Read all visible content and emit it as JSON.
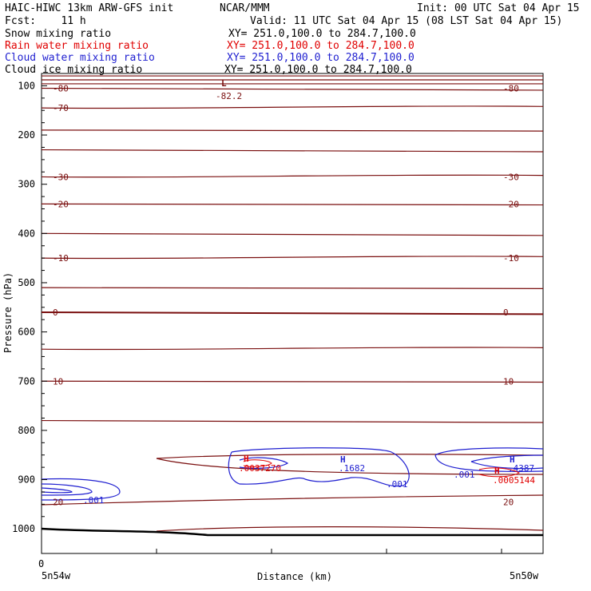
{
  "header": {
    "model": "HAIC-HIWC 13km ARW-GFS init",
    "org": "NCAR/MMM",
    "init": "Init: 00 UTC Sat 04 Apr 15",
    "fcst": "Fcst:    11 h",
    "valid": "Valid: 11 UTC Sat 04 Apr 15 (08 LST Sat 04 Apr 15)"
  },
  "legend": [
    {
      "label": "Snow mixing ratio",
      "xy": "XY= 251.0,100.0 to 284.7,100.0",
      "color": "#000000"
    },
    {
      "label": "Rain water mixing ratio",
      "xy": "XY= 251.0,100.0 to 284.7,100.0",
      "color": "#e00000"
    },
    {
      "label": "Cloud water mixing ratio",
      "xy": "XY= 251.0,100.0 to 284.7,100.0",
      "color": "#1f1fd0"
    },
    {
      "label": "Cloud ice mixing ratio",
      "xy": "XY= 251.0,100.0 to 284.7,100.0",
      "color": "#000000"
    }
  ],
  "colors": {
    "temperature": "#7a0f0f",
    "cloud_water": "#1f1fd0",
    "rain": "#e00000",
    "surface": "#000000"
  },
  "chart_data": {
    "type": "contour",
    "xlabel": "Distance (km)",
    "ylabel": "Pressure (hPa)",
    "x_ticks": [
      "0"
    ],
    "x_endpoints": [
      "5n54w",
      "5n50w"
    ],
    "y_ticks": [
      100,
      200,
      300,
      400,
      500,
      600,
      700,
      800,
      900,
      1000
    ],
    "ylim": [
      1050,
      75
    ],
    "y_scale": "linear",
    "temperature_labels": [
      {
        "value": "-80",
        "pressure": 105,
        "side": "both"
      },
      {
        "value": "-70",
        "pressure": 145,
        "side": "left"
      },
      {
        "value": "-30",
        "pressure": 285,
        "side": "both"
      },
      {
        "value": "-20",
        "pressure": 340,
        "side": "both"
      },
      {
        "value": "-10",
        "pressure": 450,
        "side": "both"
      },
      {
        "value": "0",
        "pressure": 560,
        "side": "both"
      },
      {
        "value": "10",
        "pressure": 700,
        "side": "both"
      },
      {
        "value": "20",
        "pressure": 945,
        "side": "both"
      }
    ],
    "extremes": [
      {
        "type": "L",
        "value": "-82.2",
        "series": "temperature"
      },
      {
        "type": "H",
        "value": ".0037270",
        "series": "rain"
      },
      {
        "type": "H",
        "value": ".1682",
        "series": "cloud_water"
      },
      {
        "type": "H",
        "value": ".4387",
        "series": "cloud_water"
      },
      {
        "type": "H",
        "value": ".0005144",
        "series": "rain"
      }
    ],
    "cloud_water_labels": [
      ".001",
      ".001",
      ".001"
    ]
  }
}
